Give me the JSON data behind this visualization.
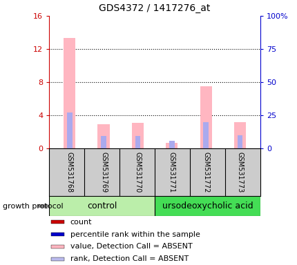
{
  "title": "GDS4372 / 1417276_at",
  "samples": [
    "GSM531768",
    "GSM531769",
    "GSM531770",
    "GSM531771",
    "GSM531772",
    "GSM531773"
  ],
  "ylim_left": [
    0,
    16
  ],
  "ylim_right": [
    0,
    100
  ],
  "yticks_left": [
    0,
    4,
    8,
    12,
    16
  ],
  "ytick_labels_left": [
    "0",
    "4",
    "8",
    "12",
    "16"
  ],
  "yticks_right": [
    0,
    25,
    50,
    75,
    100
  ],
  "ytick_labels_right": [
    "0",
    "25",
    "50",
    "75",
    "100%"
  ],
  "pink_bars": [
    13.3,
    2.9,
    3.1,
    0.7,
    7.5,
    3.2
  ],
  "blue_bars_scaled": [
    4.3,
    1.5,
    1.5,
    0.9,
    3.2,
    1.6
  ],
  "pink_bar_color": "#FFB6C1",
  "blue_bar_color": "#AAAAEE",
  "control_color": "#BBEEAA",
  "urso_color": "#44DD55",
  "sample_box_color": "#CCCCCC",
  "background_color": "#ffffff",
  "title_fontsize": 10,
  "tick_fontsize": 8,
  "legend_fontsize": 8,
  "sample_fontsize": 7,
  "group_fontsize": 9,
  "legend_labels": [
    "count",
    "percentile rank within the sample",
    "value, Detection Call = ABSENT",
    "rank, Detection Call = ABSENT"
  ],
  "legend_colors": [
    "#CC0000",
    "#0000CC",
    "#FFB6C1",
    "#BBBBEE"
  ]
}
